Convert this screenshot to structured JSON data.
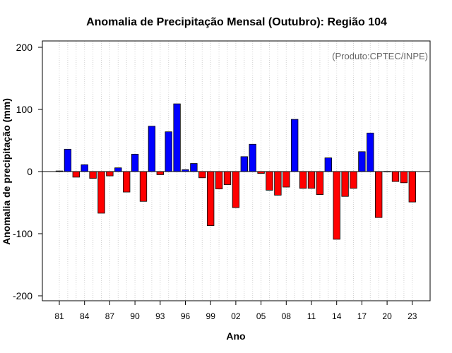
{
  "chart_data": {
    "type": "bar",
    "title": "Anomalia de Precipitação Mensal (Outubro): Região 104",
    "xlabel": "Ano",
    "ylabel": "Anomalia de precipitação (mm)",
    "credit": "(Produto:CPTEC/INPE)",
    "ylim": [
      -210,
      210
    ],
    "yticks": [
      -200,
      -100,
      0,
      100,
      200
    ],
    "grid": "vertical-dotted",
    "colors": {
      "positive": "#0000ff",
      "negative": "#ff0000",
      "edge": "#000000",
      "grid": "#d3d3d3",
      "credit": "#666666"
    },
    "categories": [
      "1981",
      "1982",
      "1983",
      "1984",
      "1985",
      "1986",
      "1987",
      "1988",
      "1989",
      "1990",
      "1991",
      "1992",
      "1993",
      "1994",
      "1995",
      "1996",
      "1997",
      "1998",
      "1999",
      "2000",
      "2001",
      "2002",
      "2003",
      "2004",
      "2005",
      "2006",
      "2007",
      "2008",
      "2009",
      "2010",
      "2011",
      "2012",
      "2013",
      "2014",
      "2015",
      "2016",
      "2017",
      "2018",
      "2019",
      "2020",
      "2021",
      "2022",
      "2023"
    ],
    "values": [
      1,
      36,
      -9,
      11,
      -11,
      -67,
      -7,
      6,
      -33,
      28,
      -48,
      73,
      -5,
      64,
      109,
      3,
      13,
      -10,
      -87,
      -28,
      -21,
      -58,
      24,
      44,
      -3,
      -30,
      -38,
      -25,
      84,
      -27,
      -27,
      -37,
      22,
      -109,
      -40,
      -27,
      32,
      62,
      -74,
      0,
      -16,
      -18,
      -49
    ],
    "xtick_labels": [
      {
        "index": 0,
        "label": "81"
      },
      {
        "index": 3,
        "label": "84"
      },
      {
        "index": 6,
        "label": "87"
      },
      {
        "index": 9,
        "label": "90"
      },
      {
        "index": 12,
        "label": "93"
      },
      {
        "index": 15,
        "label": "96"
      },
      {
        "index": 18,
        "label": "99"
      },
      {
        "index": 21,
        "label": "02"
      },
      {
        "index": 24,
        "label": "05"
      },
      {
        "index": 27,
        "label": "08"
      },
      {
        "index": 30,
        "label": "11"
      },
      {
        "index": 33,
        "label": "14"
      },
      {
        "index": 36,
        "label": "17"
      },
      {
        "index": 39,
        "label": "20"
      },
      {
        "index": 42,
        "label": "23"
      }
    ]
  }
}
